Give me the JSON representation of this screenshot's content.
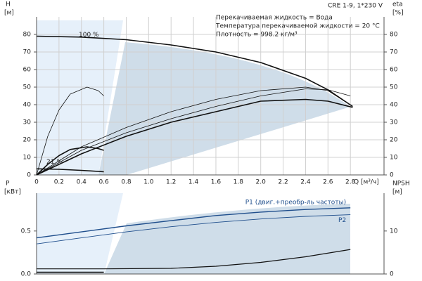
{
  "chart_data": [
    {
      "type": "line",
      "title": "CRE 1-9, 1*230 V",
      "notes": [
        "Перекачиваемая жидкость = Вода",
        "Температура перекачиваемой жидкости = 20 °C",
        "Плотность = 998.2 кг/м³"
      ],
      "ylabel": "H",
      "yunit": "[м]",
      "y2label": "eta",
      "y2unit": "[%]",
      "xlabel": "Q [м³/ч]",
      "annotations": [
        "100 %",
        "21 %"
      ],
      "xlim": [
        0,
        3.1
      ],
      "xticks": [
        0,
        0.2,
        0.4,
        0.6,
        0.8,
        {
          "value": 1,
          "label": "1.0"
        },
        1.2,
        1.4,
        1.6,
        1.8,
        {
          "value": 2,
          "label": "2.0"
        },
        2.2,
        2.4,
        2.6,
        2.8
      ],
      "ylim": [
        0,
        90
      ],
      "yticks": [
        0,
        10,
        20,
        30,
        40,
        50,
        60,
        70,
        80
      ],
      "y2lim": [
        0,
        90
      ],
      "y2ticks": [
        0,
        10,
        20,
        30,
        40,
        50,
        60,
        70,
        80
      ],
      "grid": true,
      "series": [
        {
          "color": "#111111",
          "width": 1.6,
          "x": [
            0,
            0.4,
            0.8,
            1.2,
            1.6,
            2.0,
            2.4,
            2.6,
            2.82
          ],
          "values": [
            79,
            78.5,
            77,
            74,
            70,
            64,
            55,
            48.5,
            39
          ]
        },
        {
          "color": "#111111",
          "width": 1.6,
          "x": [
            0,
            0.2,
            0.4,
            0.6
          ],
          "values": [
            3.5,
            3.2,
            2.6,
            1.8
          ]
        },
        {
          "color": "#111111",
          "width": 0.8,
          "axis": "y2",
          "x": [
            0,
            0.4,
            0.8,
            1.2,
            1.6,
            2.0,
            2.4,
            2.6,
            2.82
          ],
          "values": [
            0,
            16,
            27,
            36,
            43,
            48,
            50,
            48,
            39
          ]
        },
        {
          "color": "#111111",
          "width": 0.8,
          "axis": "y2",
          "x": [
            0,
            0.4,
            0.8,
            1.2,
            1.6,
            2.0,
            2.4,
            2.6,
            2.8
          ],
          "values": [
            0,
            14,
            24,
            32,
            39,
            45,
            49,
            48.5,
            45
          ]
        },
        {
          "color": "#111111",
          "width": 1.6,
          "axis": "y2",
          "x": [
            0,
            0.4,
            0.8,
            1.2,
            1.6,
            2.0,
            2.4,
            2.6,
            2.82
          ],
          "values": [
            0,
            12,
            22,
            30,
            36,
            42,
            43,
            42,
            38.5
          ]
        },
        {
          "color": "#111111",
          "width": 0.8,
          "axis": "y2",
          "x": [
            0,
            0.1,
            0.2,
            0.3,
            0.45,
            0.55,
            0.6
          ],
          "values": [
            0,
            22,
            37,
            46,
            50,
            48,
            45
          ]
        },
        {
          "color": "#111111",
          "width": 1.6,
          "axis": "y2",
          "x": [
            0,
            0.1,
            0.2,
            0.3,
            0.45,
            0.55,
            0.6
          ],
          "values": [
            0,
            6,
            11,
            14.5,
            16,
            15,
            14
          ]
        }
      ]
    },
    {
      "type": "line",
      "ylabel": "P",
      "yunit": "[кВт]",
      "y2label": "NPSH",
      "y2unit": "[м]",
      "xlim": [
        0,
        3.1
      ],
      "ylim": [
        0,
        0.94
      ],
      "yticks": [
        {
          "value": 0,
          "label": "0.0"
        },
        0.5
      ],
      "y2lim": [
        0,
        18.8
      ],
      "y2ticks": [
        0,
        10
      ],
      "series": [
        {
          "name": "P1 (двиг.+преобр-ль частоты)",
          "color": "#1f4e8c",
          "width": 1.4,
          "x": [
            0,
            0.4,
            0.8,
            1.2,
            1.6,
            2.0,
            2.4,
            2.8
          ],
          "values": [
            0.42,
            0.49,
            0.56,
            0.62,
            0.68,
            0.72,
            0.75,
            0.77
          ]
        },
        {
          "name": "P2",
          "color": "#1f4e8c",
          "width": 0.9,
          "x": [
            0,
            0.4,
            0.8,
            1.2,
            1.6,
            2.0,
            2.4,
            2.8
          ],
          "values": [
            0.35,
            0.42,
            0.49,
            0.55,
            0.6,
            0.64,
            0.67,
            0.69
          ]
        },
        {
          "color": "#111111",
          "width": 1.2,
          "axis": "y2",
          "x": [
            0,
            0.6,
            1.2,
            1.6,
            2.0,
            2.4,
            2.8
          ],
          "values": [
            1.2,
            1.2,
            1.3,
            1.8,
            2.7,
            4.0,
            5.7
          ]
        },
        {
          "color": "#111111",
          "width": 1.6,
          "x": [
            0,
            0.6
          ],
          "values": [
            0.02,
            0.02
          ]
        }
      ]
    }
  ]
}
